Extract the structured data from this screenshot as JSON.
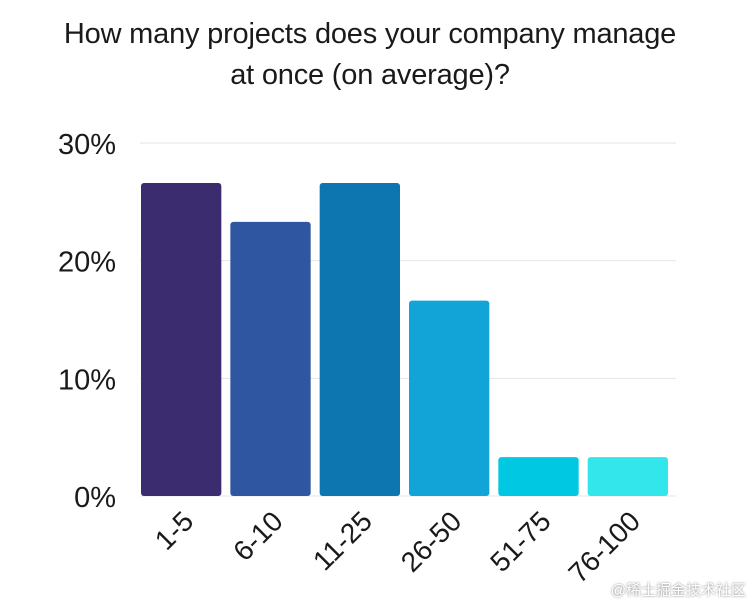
{
  "chart_data": {
    "type": "bar",
    "title_lines": [
      "How many projects does your company manage",
      "at once (on average)?"
    ],
    "categories": [
      "1-5",
      "6-10",
      "11-25",
      "26-50",
      "51-75",
      "76-100"
    ],
    "values": [
      26.6,
      23.3,
      26.6,
      16.6,
      3.3,
      3.3
    ],
    "value_unit": "%",
    "ylim": [
      0,
      30
    ],
    "yticks": [
      0,
      10,
      20,
      30
    ],
    "ytick_labels": [
      "0%",
      "10%",
      "20%",
      "30%"
    ],
    "xlabel": "",
    "ylabel": "",
    "grid": true,
    "bar_colors": [
      "#3a2c6e",
      "#2f56a0",
      "#0d76b0",
      "#12a4d6",
      "#00c8e2",
      "#33e6ec"
    ],
    "grid_color": "#e6e6e6"
  },
  "watermark": "@稀土掘金技术社区"
}
